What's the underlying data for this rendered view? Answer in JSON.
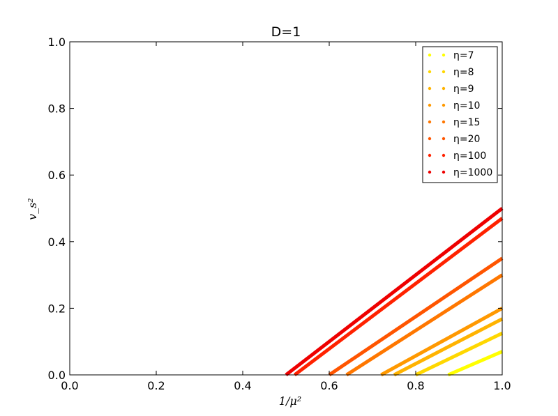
{
  "chart_data": {
    "type": "line",
    "title": "D=1",
    "xlabel": "1/μ²",
    "ylabel": "v_s²",
    "xlim": [
      0.0,
      1.0
    ],
    "ylim": [
      0.0,
      1.0
    ],
    "xticks": [
      "0.0",
      "0.2",
      "0.4",
      "0.6",
      "0.8",
      "1.0"
    ],
    "yticks": [
      "0.0",
      "0.2",
      "0.4",
      "0.6",
      "0.8",
      "1.0"
    ],
    "grid": false,
    "legend_position": "top-right",
    "series": [
      {
        "name": "η=7",
        "color": "#ffff00",
        "x": [
          0.875,
          1.0
        ],
        "y": [
          0.0,
          0.07
        ]
      },
      {
        "name": "η=8",
        "color": "#ffd700",
        "x": [
          0.8,
          1.0
        ],
        "y": [
          0.0,
          0.125
        ]
      },
      {
        "name": "η=9",
        "color": "#ffb300",
        "x": [
          0.75,
          1.0
        ],
        "y": [
          0.0,
          0.168
        ]
      },
      {
        "name": "η=10",
        "color": "#ff9900",
        "x": [
          0.72,
          1.0
        ],
        "y": [
          0.0,
          0.2
        ]
      },
      {
        "name": "η=15",
        "color": "#ff7700",
        "x": [
          0.64,
          1.0
        ],
        "y": [
          0.0,
          0.3
        ]
      },
      {
        "name": "η=20",
        "color": "#ff5500",
        "x": [
          0.6,
          1.0
        ],
        "y": [
          0.0,
          0.35
        ]
      },
      {
        "name": "η=100",
        "color": "#ff2200",
        "x": [
          0.52,
          1.0
        ],
        "y": [
          0.0,
          0.47
        ]
      },
      {
        "name": "η=1000",
        "color": "#ee0000",
        "x": [
          0.5,
          1.0
        ],
        "y": [
          0.0,
          0.5
        ]
      }
    ]
  }
}
